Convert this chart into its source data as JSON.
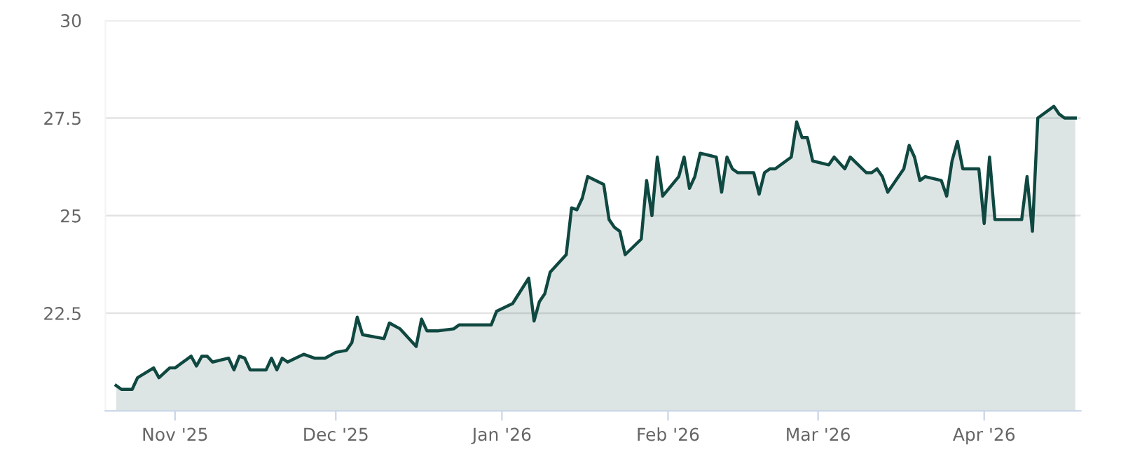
{
  "chart_data": {
    "type": "area",
    "x": [
      "2025-10-21",
      "2025-10-22",
      "2025-10-24",
      "2025-10-25",
      "2025-10-28",
      "2025-10-29",
      "2025-10-31",
      "2025-11-01",
      "2025-11-04",
      "2025-11-05",
      "2025-11-06",
      "2025-11-07",
      "2025-11-08",
      "2025-11-11",
      "2025-11-12",
      "2025-11-13",
      "2025-11-14",
      "2025-11-15",
      "2025-11-18",
      "2025-11-19",
      "2025-11-20",
      "2025-11-21",
      "2025-11-22",
      "2025-11-25",
      "2025-11-27",
      "2025-11-29",
      "2025-12-01",
      "2025-12-03",
      "2025-12-04",
      "2025-12-05",
      "2025-12-06",
      "2025-12-10",
      "2025-12-11",
      "2025-12-13",
      "2025-12-16",
      "2025-12-17",
      "2025-12-18",
      "2025-12-20",
      "2025-12-23",
      "2025-12-24",
      "2025-12-30",
      "2025-12-31",
      "2026-01-03",
      "2026-01-06",
      "2026-01-07",
      "2026-01-08",
      "2026-01-09",
      "2026-01-10",
      "2026-01-13",
      "2026-01-14",
      "2026-01-15",
      "2026-01-16",
      "2026-01-17",
      "2026-01-20",
      "2026-01-21",
      "2026-01-22",
      "2026-01-23",
      "2026-01-24",
      "2026-01-27",
      "2026-01-28",
      "2026-01-29",
      "2026-01-30",
      "2026-01-31",
      "2026-02-03",
      "2026-02-04",
      "2026-02-05",
      "2026-02-06",
      "2026-02-07",
      "2026-02-10",
      "2026-02-11",
      "2026-02-12",
      "2026-02-13",
      "2026-02-14",
      "2026-02-17",
      "2026-02-18",
      "2026-02-19",
      "2026-02-20",
      "2026-02-21",
      "2026-02-24",
      "2026-02-25",
      "2026-02-26",
      "2026-02-27",
      "2026-02-28",
      "2026-03-03",
      "2026-03-04",
      "2026-03-06",
      "2026-03-07",
      "2026-03-10",
      "2026-03-11",
      "2026-03-12",
      "2026-03-13",
      "2026-03-14",
      "2026-03-17",
      "2026-03-18",
      "2026-03-19",
      "2026-03-20",
      "2026-03-21",
      "2026-03-24",
      "2026-03-25",
      "2026-03-26",
      "2026-03-27",
      "2026-03-28",
      "2026-03-31",
      "2026-04-01",
      "2026-04-02",
      "2026-04-03",
      "2026-04-08",
      "2026-04-09",
      "2026-04-10",
      "2026-04-11",
      "2026-04-14",
      "2026-04-15",
      "2026-04-16",
      "2026-04-18"
    ],
    "series": [
      {
        "color": "#0f4840",
        "values": [
          20.65,
          20.55,
          20.55,
          20.85,
          21.1,
          20.85,
          21.1,
          21.1,
          21.4,
          21.15,
          21.4,
          21.4,
          21.25,
          21.35,
          21.05,
          21.4,
          21.35,
          21.05,
          21.05,
          21.35,
          21.05,
          21.35,
          21.25,
          21.45,
          21.35,
          21.35,
          21.5,
          21.55,
          21.75,
          22.4,
          21.95,
          21.85,
          22.25,
          22.1,
          21.65,
          22.35,
          22.05,
          22.05,
          22.1,
          22.2,
          22.2,
          22.55,
          22.75,
          23.4,
          22.3,
          22.8,
          23.0,
          23.55,
          24.0,
          25.2,
          25.15,
          25.45,
          26.0,
          25.8,
          24.9,
          24.7,
          24.6,
          24.0,
          24.4,
          25.9,
          25.0,
          26.5,
          25.5,
          26.0,
          26.5,
          25.7,
          26.0,
          26.6,
          26.5,
          25.6,
          26.5,
          26.2,
          26.1,
          26.1,
          25.55,
          26.1,
          26.2,
          26.2,
          26.5,
          27.4,
          27.0,
          27.0,
          26.4,
          26.3,
          26.5,
          26.2,
          26.5,
          26.1,
          26.1,
          26.2,
          26.0,
          25.6,
          26.2,
          26.8,
          26.5,
          25.9,
          26.0,
          25.9,
          25.5,
          26.4,
          26.9,
          26.2,
          26.2,
          24.8,
          26.5,
          24.9,
          24.9,
          26.0,
          24.6,
          27.5,
          27.8,
          27.6,
          27.5,
          27.5
        ]
      }
    ],
    "xlim": [
      "2025-10-19",
      "2026-04-19"
    ],
    "xticks": [
      {
        "value": "2025-11-01",
        "label": "Nov '25"
      },
      {
        "value": "2025-12-01",
        "label": "Dec '25"
      },
      {
        "value": "2026-01-01",
        "label": "Jan '26"
      },
      {
        "value": "2026-02-01",
        "label": "Feb '26"
      },
      {
        "value": "2026-03-01",
        "label": "Mar '26"
      },
      {
        "value": "2026-04-01",
        "label": "Apr '26"
      }
    ],
    "ylim": [
      20,
      30
    ],
    "yticks": [
      22.5,
      25,
      27.5,
      30
    ],
    "grid": "y",
    "marker": "none",
    "line_style": "solid"
  }
}
